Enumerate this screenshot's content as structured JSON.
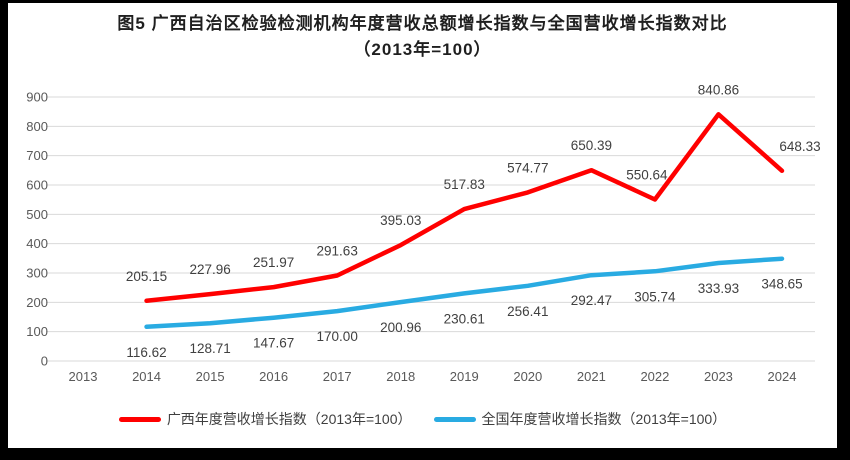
{
  "title": "图5 广西自治区检验检测机构年度营收总额增长指数与全国营收增长指数对比（2013年=100）",
  "colors": {
    "guangxi_line": "#ff0000",
    "national_line": "#29abe2",
    "gridline": "#d9d9d9",
    "axis_tick_label": "#595959",
    "data_label": "#404040",
    "frame_border": "#000000"
  },
  "chart_data": {
    "type": "line",
    "categories": [
      "2013",
      "2014",
      "2015",
      "2016",
      "2017",
      "2018",
      "2019",
      "2020",
      "2021",
      "2022",
      "2023",
      "2024"
    ],
    "ylim": [
      0,
      900
    ],
    "ytick_step": 100,
    "ytick_labels": [
      "0",
      "100",
      "200",
      "300",
      "400",
      "500",
      "600",
      "700",
      "800",
      "900"
    ],
    "grid": true,
    "legend_position": "bottom",
    "series": [
      {
        "name": "广西年度营收增长指数（2013年=100）",
        "color": "#ff0000",
        "start_index": 1,
        "values": [
          205.15,
          227.96,
          251.97,
          291.63,
          395.03,
          517.83,
          574.77,
          650.39,
          550.64,
          840.86,
          648.33
        ],
        "labels": [
          "205.15",
          "227.96",
          "251.97",
          "291.63",
          "395.03",
          "517.83",
          "574.77",
          "650.39",
          "550.64",
          "840.86",
          "648.33"
        ],
        "label_position": "above",
        "label_dx": {
          "8": -8,
          "10": 18
        }
      },
      {
        "name": "全国年度营收增长指数（2013年=100）",
        "color": "#29abe2",
        "start_index": 1,
        "values": [
          116.62,
          128.71,
          147.67,
          170.0,
          200.96,
          230.61,
          256.41,
          292.47,
          305.74,
          333.93,
          348.65
        ],
        "labels": [
          "116.62",
          "128.71",
          "147.67",
          "170.00",
          "200.96",
          "230.61",
          "256.41",
          "292.47",
          "305.74",
          "333.93",
          "348.65"
        ],
        "label_position": "below",
        "label_dx": {}
      }
    ]
  }
}
